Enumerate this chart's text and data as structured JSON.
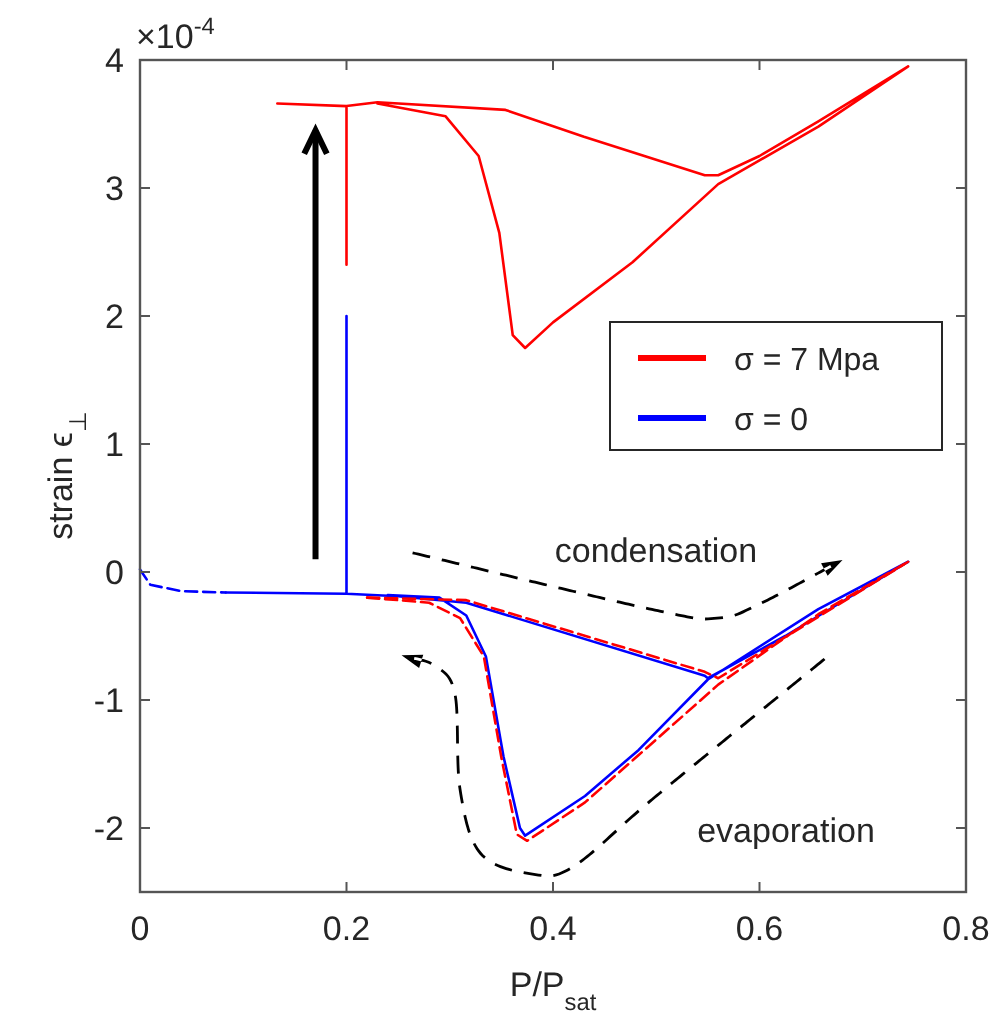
{
  "chart_data": {
    "type": "line",
    "xlabel": "P/P$_{sat}$",
    "ylabel": "strain  ϵ$_{⊥}$",
    "xlim": [
      0,
      0.8
    ],
    "xticks": [
      0,
      0.2,
      0.4,
      0.6,
      0.8
    ],
    "ylim": [
      -2.5,
      4
    ],
    "yticks": [
      -2,
      -1,
      0,
      1,
      2,
      3,
      4
    ],
    "grid": false,
    "legend": "right",
    "annotations": [
      "×10$^{-4}$",
      "condensation",
      "evaporation"
    ],
    "series": [
      {
        "name": "σ = 7 Mpa",
        "color": "#ff0000",
        "line_style": "solid",
        "x": [
          0.2,
          0.2,
          0.133,
          0.2,
          0.23,
          0.354,
          0.43,
          0.547,
          0.56,
          0.6,
          0.657,
          0.744,
          0.657,
          0.56,
          0.477,
          0.4,
          0.373,
          0.361,
          0.348,
          0.328,
          0.296,
          0.23
        ],
        "values": [
          2.4,
          3.64,
          3.66,
          3.64,
          3.67,
          3.61,
          3.4,
          3.1,
          3.1,
          3.25,
          3.52,
          3.95,
          3.48,
          3.03,
          2.42,
          1.95,
          1.75,
          1.85,
          2.65,
          3.25,
          3.56,
          3.66
        ]
      },
      {
        "name": "σ = 0",
        "color": "#0000ff",
        "line_style": "solid",
        "x": [
          0.083,
          0.2,
          0.2,
          0.2,
          0.25,
          0.316,
          0.547,
          0.55,
          0.625,
          0.744,
          0.657,
          0.55,
          0.483,
          0.431,
          0.373,
          0.368,
          0.352,
          0.335,
          0.316,
          0.29,
          0.24
        ],
        "values": [
          -0.16,
          -0.17,
          2.0,
          -0.17,
          -0.19,
          -0.24,
          -0.81,
          -0.83,
          -0.5,
          0.08,
          -0.29,
          -0.84,
          -1.39,
          -1.75,
          -2.06,
          -2.0,
          -1.44,
          -0.66,
          -0.34,
          -0.2,
          -0.18
        ]
      },
      {
        "color": "#ff0000",
        "line_style": "dashed",
        "x": [
          0.22,
          0.316,
          0.547,
          0.56,
          0.744
        ],
        "values": [
          -0.2,
          -0.22,
          -0.78,
          -0.83,
          0.08
        ]
      },
      {
        "color": "#ff0000",
        "line_style": "dashed",
        "x": [
          0.22,
          0.28,
          0.31,
          0.333,
          0.35,
          0.365,
          0.375,
          0.431,
          0.483,
          0.56,
          0.657,
          0.744
        ],
        "values": [
          -0.2,
          -0.24,
          -0.36,
          -0.66,
          -1.45,
          -2.05,
          -2.1,
          -1.8,
          -1.43,
          -0.88,
          -0.33,
          0.08
        ]
      },
      {
        "color": "#0000ff",
        "line_style": "dashed",
        "x": [
          0,
          0.01,
          0.04,
          0.083
        ],
        "values": [
          0.02,
          -0.1,
          -0.15,
          -0.16
        ]
      }
    ]
  }
}
